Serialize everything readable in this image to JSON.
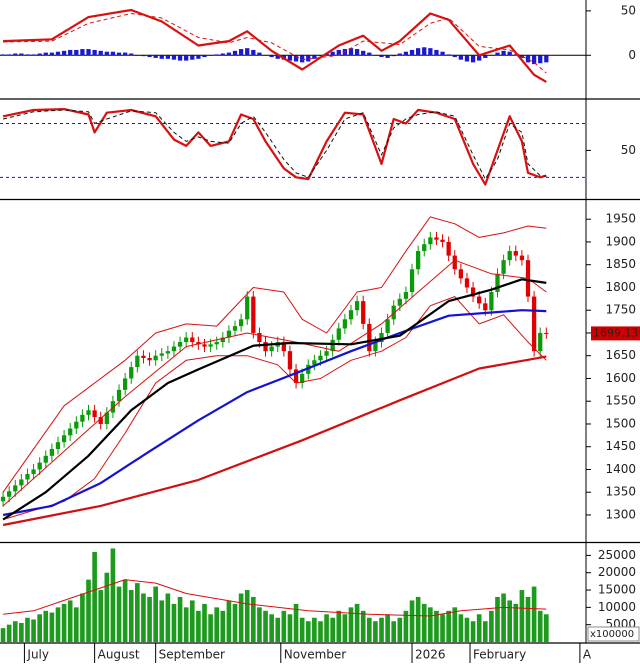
{
  "chart_data": [
    {
      "type": "line",
      "ylim": [
        -47,
        60
      ],
      "yticks": [
        0,
        50
      ],
      "baseline": 0,
      "histogram": {
        "color": "#1a1ad0",
        "values": [
          1,
          1,
          2,
          2,
          1,
          1,
          2,
          3,
          3,
          4,
          5,
          6,
          6,
          7,
          7,
          6,
          5,
          4,
          4,
          3,
          3,
          2,
          0,
          -1,
          -2,
          -3,
          -4,
          -4,
          -5,
          -6,
          -6,
          -5,
          -4,
          -2,
          0,
          1,
          2,
          3,
          5,
          7,
          8,
          6,
          3,
          0,
          -2,
          -4,
          -5,
          -6,
          -7,
          -8,
          -7,
          -4,
          -1,
          2,
          4,
          6,
          7,
          8,
          7,
          5,
          3,
          0,
          -2,
          -3,
          -1,
          2,
          4,
          6,
          8,
          9,
          8,
          6,
          4,
          1,
          -2,
          -5,
          -7,
          -8,
          -6,
          -3,
          0,
          3,
          5,
          4,
          1,
          -3,
          -8,
          -10,
          -9,
          -8
        ]
      },
      "series": [
        {
          "color": "#d81010",
          "line": "thick",
          "x": [
            0,
            8,
            14,
            21,
            26,
            32,
            37,
            40,
            44,
            49,
            55,
            59,
            62,
            65,
            70,
            73,
            78,
            83,
            87,
            89
          ],
          "values": [
            16,
            18,
            43,
            51,
            38,
            11,
            16,
            27,
            5,
            -16,
            11,
            22,
            5,
            16,
            47,
            40,
            0,
            11,
            -22,
            -30
          ]
        },
        {
          "color": "#d81010",
          "line": "thin",
          "dashed": true,
          "x": [
            0,
            8,
            14,
            21,
            26,
            32,
            37,
            40,
            44,
            49,
            55,
            59,
            62,
            65,
            70,
            73,
            78,
            83,
            87,
            89
          ],
          "values": [
            15,
            16,
            36,
            47,
            42,
            20,
            14,
            20,
            14,
            -5,
            0,
            16,
            14,
            12,
            36,
            42,
            10,
            6,
            -8,
            -20
          ]
        }
      ]
    },
    {
      "type": "line",
      "ylim": [
        -3,
        105
      ],
      "yticks": [
        50
      ],
      "levels": [
        80,
        20
      ],
      "level_color": "#1a1ad0",
      "series": [
        {
          "color": "#d81010",
          "line": "thick",
          "x": [
            0,
            5,
            10,
            14,
            15,
            17,
            21,
            25,
            28,
            30,
            32,
            34,
            37,
            39,
            41,
            43,
            46,
            48,
            50,
            53,
            56,
            59,
            62,
            64,
            66,
            68,
            71,
            74,
            77,
            79,
            81,
            83,
            85,
            86,
            88,
            89
          ],
          "values": [
            88,
            95,
            96,
            90,
            70,
            92,
            95,
            88,
            62,
            55,
            70,
            55,
            60,
            90,
            85,
            60,
            30,
            20,
            18,
            60,
            92,
            90,
            35,
            85,
            80,
            95,
            92,
            85,
            35,
            12,
            50,
            88,
            60,
            25,
            20,
            22
          ]
        },
        {
          "color": "#111111",
          "line": "thin",
          "dashed": true,
          "x": [
            0,
            5,
            10,
            14,
            15,
            17,
            21,
            25,
            28,
            30,
            32,
            34,
            37,
            39,
            41,
            43,
            46,
            48,
            50,
            53,
            56,
            59,
            62,
            64,
            66,
            68,
            71,
            74,
            77,
            79,
            81,
            83,
            85,
            86,
            88,
            89
          ],
          "values": [
            85,
            93,
            95,
            93,
            80,
            85,
            94,
            92,
            70,
            60,
            65,
            60,
            58,
            80,
            88,
            70,
            40,
            25,
            20,
            50,
            85,
            92,
            45,
            75,
            85,
            90,
            93,
            88,
            45,
            18,
            40,
            80,
            70,
            35,
            22,
            21
          ]
        }
      ]
    },
    {
      "type": "candlestick",
      "ylim": [
        1245,
        1990
      ],
      "yticks": [
        1300,
        1350,
        1400,
        1450,
        1500,
        1550,
        1600,
        1650,
        1700,
        1750,
        1800,
        1850,
        1900,
        1950
      ],
      "up_color": "#0a9a0a",
      "down_color": "#e00000",
      "price_label": "1699.130",
      "price_label_color": "#d00000",
      "open": [
        1330,
        1340,
        1352,
        1365,
        1378,
        1390,
        1400,
        1415,
        1430,
        1445,
        1460,
        1475,
        1490,
        1505,
        1520,
        1530,
        1515,
        1500,
        1525,
        1550,
        1575,
        1600,
        1625,
        1650,
        1645,
        1640,
        1650,
        1655,
        1660,
        1670,
        1680,
        1690,
        1680,
        1675,
        1670,
        1675,
        1680,
        1690,
        1705,
        1715,
        1730,
        1780,
        1700,
        1680,
        1660,
        1670,
        1680,
        1660,
        1620,
        1590,
        1610,
        1630,
        1640,
        1650,
        1660,
        1685,
        1710,
        1730,
        1750,
        1770,
        1720,
        1660,
        1680,
        1700,
        1730,
        1760,
        1775,
        1790,
        1840,
        1880,
        1895,
        1910,
        1905,
        1900,
        1870,
        1840,
        1820,
        1800,
        1780,
        1765,
        1750,
        1790,
        1830,
        1860,
        1880,
        1870,
        1860,
        1780,
        1660,
        1700
      ],
      "high": [
        1352,
        1364,
        1377,
        1390,
        1402,
        1412,
        1427,
        1442,
        1457,
        1472,
        1487,
        1502,
        1517,
        1532,
        1542,
        1542,
        1527,
        1537,
        1562,
        1587,
        1612,
        1637,
        1662,
        1662,
        1657,
        1662,
        1667,
        1672,
        1682,
        1692,
        1702,
        1702,
        1692,
        1687,
        1687,
        1692,
        1702,
        1717,
        1727,
        1742,
        1792,
        1792,
        1712,
        1692,
        1682,
        1692,
        1692,
        1672,
        1632,
        1622,
        1642,
        1652,
        1662,
        1672,
        1697,
        1722,
        1742,
        1762,
        1782,
        1782,
        1732,
        1692,
        1712,
        1742,
        1772,
        1787,
        1802,
        1852,
        1892,
        1907,
        1922,
        1922,
        1917,
        1912,
        1882,
        1852,
        1832,
        1812,
        1792,
        1777,
        1802,
        1842,
        1872,
        1892,
        1892,
        1882,
        1872,
        1792,
        1712,
        1712
      ],
      "low": [
        1318,
        1328,
        1340,
        1353,
        1366,
        1378,
        1388,
        1403,
        1418,
        1433,
        1448,
        1463,
        1478,
        1493,
        1508,
        1503,
        1488,
        1488,
        1513,
        1538,
        1563,
        1588,
        1613,
        1633,
        1628,
        1628,
        1638,
        1643,
        1648,
        1658,
        1668,
        1668,
        1663,
        1658,
        1658,
        1663,
        1668,
        1678,
        1693,
        1703,
        1718,
        1688,
        1668,
        1648,
        1648,
        1658,
        1648,
        1608,
        1578,
        1578,
        1598,
        1618,
        1628,
        1638,
        1648,
        1673,
        1698,
        1718,
        1738,
        1708,
        1648,
        1648,
        1668,
        1688,
        1718,
        1748,
        1763,
        1778,
        1828,
        1868,
        1883,
        1893,
        1888,
        1858,
        1828,
        1808,
        1788,
        1768,
        1753,
        1738,
        1738,
        1778,
        1818,
        1848,
        1858,
        1848,
        1768,
        1648,
        1648,
        1687
      ],
      "close": [
        1340,
        1352,
        1365,
        1378,
        1390,
        1400,
        1415,
        1430,
        1445,
        1460,
        1475,
        1490,
        1505,
        1520,
        1530,
        1515,
        1500,
        1525,
        1550,
        1575,
        1600,
        1625,
        1650,
        1645,
        1640,
        1650,
        1655,
        1660,
        1670,
        1680,
        1690,
        1680,
        1675,
        1670,
        1675,
        1680,
        1690,
        1705,
        1715,
        1730,
        1780,
        1700,
        1680,
        1660,
        1670,
        1680,
        1660,
        1620,
        1590,
        1610,
        1630,
        1640,
        1650,
        1660,
        1685,
        1710,
        1730,
        1750,
        1770,
        1720,
        1660,
        1680,
        1700,
        1730,
        1760,
        1775,
        1790,
        1840,
        1880,
        1895,
        1910,
        1905,
        1900,
        1870,
        1840,
        1820,
        1800,
        1780,
        1765,
        1750,
        1790,
        1830,
        1860,
        1880,
        1870,
        1860,
        1780,
        1660,
        1700,
        1699
      ],
      "series": [
        {
          "color": "#d81010",
          "line": "thin",
          "x": [
            0,
            10,
            20,
            25,
            30,
            35,
            41,
            46,
            49,
            53,
            58,
            62,
            66,
            70,
            74,
            78,
            82,
            86,
            89
          ],
          "values": [
            1350,
            1540,
            1640,
            1700,
            1720,
            1715,
            1800,
            1790,
            1730,
            1700,
            1790,
            1800,
            1880,
            1955,
            1940,
            1910,
            1920,
            1935,
            1930
          ]
        },
        {
          "color": "#d81010",
          "line": "thin",
          "x": [
            0,
            10,
            15,
            20,
            25,
            30,
            35,
            40,
            45,
            48,
            52,
            57,
            62,
            66,
            70,
            74,
            78,
            82,
            86,
            89
          ],
          "values": [
            1290,
            1330,
            1380,
            1480,
            1590,
            1640,
            1650,
            1650,
            1630,
            1590,
            1600,
            1640,
            1660,
            1690,
            1760,
            1780,
            1720,
            1740,
            1680,
            1640
          ]
        },
        {
          "color": "#d81010",
          "line": "thin",
          "x": [
            0,
            10,
            20,
            30,
            40,
            48,
            55,
            62,
            68,
            74,
            80,
            86,
            89
          ],
          "values": [
            1320,
            1440,
            1560,
            1670,
            1700,
            1680,
            1660,
            1720,
            1790,
            1860,
            1830,
            1820,
            1790
          ]
        },
        {
          "color": "#d01010",
          "line": "thick",
          "x": [
            0,
            16,
            32,
            49,
            65,
            78,
            89
          ],
          "values": [
            1278,
            1320,
            1377,
            1464,
            1552,
            1622,
            1648
          ]
        },
        {
          "color": "#1414d0",
          "line": "thick",
          "x": [
            0,
            8,
            16,
            24,
            32,
            40,
            49,
            57,
            65,
            73,
            80,
            85,
            89
          ],
          "values": [
            1300,
            1320,
            1370,
            1440,
            1508,
            1570,
            1617,
            1660,
            1700,
            1738,
            1745,
            1750,
            1748
          ]
        },
        {
          "color": "#000000",
          "line": "thick",
          "x": [
            0,
            7,
            14,
            21,
            27,
            32,
            41,
            47,
            57,
            65,
            73,
            80,
            85,
            89
          ],
          "values": [
            1290,
            1350,
            1430,
            1530,
            1590,
            1620,
            1672,
            1678,
            1675,
            1694,
            1770,
            1795,
            1818,
            1810
          ]
        }
      ]
    },
    {
      "type": "bar",
      "ylim": [
        0,
        28000
      ],
      "yticks": [
        5000,
        10000,
        15000,
        20000,
        25000
      ],
      "color": "#1e9b1e",
      "unit_label": "x100000",
      "values": [
        4000,
        5000,
        6000,
        5500,
        7000,
        6500,
        8000,
        9000,
        8500,
        10000,
        11000,
        12000,
        10000,
        14000,
        18000,
        26000,
        15000,
        20000,
        27000,
        16000,
        18000,
        15000,
        17000,
        14000,
        13000,
        16000,
        12000,
        14000,
        11000,
        13000,
        10000,
        12000,
        9000,
        11000,
        8000,
        10000,
        9000,
        12000,
        11000,
        14000,
        15000,
        13000,
        10000,
        9000,
        8000,
        7000,
        9000,
        8000,
        11000,
        7000,
        6000,
        7000,
        6000,
        8000,
        7000,
        9000,
        8000,
        10000,
        11000,
        9000,
        7000,
        6000,
        7000,
        8000,
        6000,
        7000,
        9000,
        12000,
        13000,
        11000,
        10000,
        9000,
        8000,
        9000,
        10000,
        8000,
        7000,
        6000,
        8000,
        6000,
        9000,
        13000,
        14000,
        12000,
        11000,
        15000,
        13000,
        16000,
        9000,
        8000
      ],
      "series": [
        {
          "color": "#d81010",
          "line": "thin",
          "x": [
            0,
            5,
            10,
            15,
            20,
            25,
            30,
            40,
            50,
            60,
            70,
            75,
            82,
            89
          ],
          "values": [
            8000,
            9000,
            12000,
            15000,
            18000,
            17000,
            14000,
            11000,
            9000,
            8000,
            7500,
            9000,
            10000,
            9500
          ]
        }
      ],
      "xlim": [
        -0.5,
        95.5
      ],
      "xticks": [
        {
          "value": 3.5,
          "label": "July"
        },
        {
          "value": 15,
          "label": "August"
        },
        {
          "value": 25,
          "label": "September"
        },
        {
          "value": 45.5,
          "label": "November"
        },
        {
          "value": 67,
          "label": "2026"
        },
        {
          "value": 76.5,
          "label": "February"
        },
        {
          "value": 94.5,
          "label": "A"
        }
      ]
    }
  ]
}
